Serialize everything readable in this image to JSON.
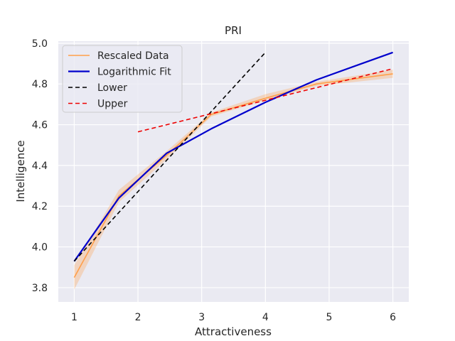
{
  "chart_data": {
    "type": "line",
    "title": "PRI",
    "xlabel": "Attractiveness",
    "ylabel": "Intelligence",
    "xlim": [
      0.75,
      6.25
    ],
    "ylim": [
      3.73,
      5.01
    ],
    "xticks": [
      1,
      2,
      3,
      4,
      5,
      6
    ],
    "yticks": [
      3.8,
      4.0,
      4.2,
      4.4,
      4.6,
      4.8,
      5.0
    ],
    "xtick_labels": [
      "1",
      "2",
      "3",
      "4",
      "5",
      "6"
    ],
    "ytick_labels": [
      "3.8",
      "4.0",
      "4.2",
      "4.4",
      "4.6",
      "4.8",
      "5.0"
    ],
    "grid": true,
    "legend_position": "upper-left",
    "series": [
      {
        "name": "Rescaled Data",
        "color": "#ff9f4a",
        "style": "solid",
        "x": [
          1,
          1.7,
          2.45,
          3.15,
          4,
          4.8,
          6
        ],
        "y": [
          3.85,
          4.25,
          4.45,
          4.65,
          4.73,
          4.8,
          4.85
        ],
        "band_low": [
          3.79,
          4.22,
          4.43,
          4.64,
          4.72,
          4.79,
          4.83
        ],
        "band_high": [
          3.91,
          4.28,
          4.47,
          4.66,
          4.75,
          4.81,
          4.87
        ]
      },
      {
        "name": "Logarithmic Fit",
        "color": "#0000cc",
        "style": "solid",
        "x": [
          1,
          1.7,
          2.45,
          3.15,
          4,
          4.8,
          6
        ],
        "y": [
          3.93,
          4.24,
          4.46,
          4.58,
          4.71,
          4.82,
          4.955
        ]
      },
      {
        "name": "Lower",
        "color": "#000000",
        "style": "dashed",
        "x": [
          1,
          4
        ],
        "y": [
          3.93,
          4.955
        ]
      },
      {
        "name": "Upper",
        "color": "#ee0000",
        "style": "dashed",
        "x": [
          2,
          6
        ],
        "y": [
          4.565,
          4.875
        ]
      }
    ]
  }
}
